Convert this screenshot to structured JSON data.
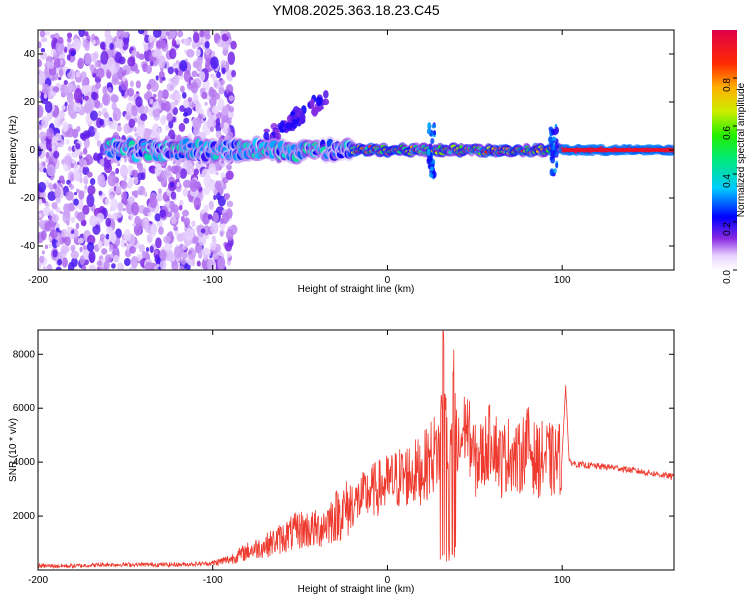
{
  "title": "YM08.2025.363.18.23.C45",
  "colors": {
    "snr_line": "#ee3a2e",
    "frame": "#000000",
    "spectrogram_low": "#8a2be2",
    "spectrogram_high": "#e0113a"
  },
  "chart_data": [
    {
      "type": "heatmap",
      "name": "spectrogram",
      "xlabel": "Height of straight line (km)",
      "ylabel": "Frequency (Hz)",
      "xlim": [
        -200,
        164
      ],
      "ylim": [
        -50,
        50
      ],
      "x_ticks": [
        -200,
        -100,
        0,
        100
      ],
      "x_tick_labels": [
        "-200",
        "-100",
        "0",
        "100"
      ],
      "y_ticks": [
        -40,
        -20,
        0,
        20,
        40
      ],
      "y_tick_labels": [
        "-40",
        "-20",
        "0",
        "20",
        "40"
      ],
      "colorbar": {
        "label": "Normalized spectral amplitude",
        "range": [
          0,
          1
        ],
        "ticks": [
          0,
          0.2,
          0.4,
          0.6,
          0.8
        ],
        "tick_labels": [
          "0.0",
          "0.2",
          "0.4",
          "0.6",
          "0.8"
        ]
      },
      "features": {
        "noise_region_x": [
          -200,
          -88
        ],
        "signal_band_frequency_hz": 0,
        "strong_signal_x": [
          -20,
          164
        ],
        "upward_branch": {
          "x": [
            -70,
            -35
          ],
          "frequency_hz": [
            5,
            22
          ]
        }
      }
    },
    {
      "type": "line",
      "name": "snr",
      "xlabel": "Height of straight line (km)",
      "ylabel": "SNR (10 * v/v)",
      "xlim": [
        -200,
        164
      ],
      "ylim": [
        0,
        8900
      ],
      "x_ticks": [
        -200,
        -100,
        0,
        100
      ],
      "x_tick_labels": [
        "-200",
        "-100",
        "0",
        "100"
      ],
      "y_ticks": [
        2000,
        4000,
        6000,
        8000
      ],
      "y_tick_labels": [
        "2000",
        "4000",
        "6000",
        "8000"
      ],
      "series": [
        {
          "x": [
            -200,
            -180,
            -160,
            -140,
            -120,
            -100,
            -90,
            -80,
            -70,
            -60,
            -50,
            -40,
            -30,
            -20,
            -10,
            0,
            10,
            20,
            25,
            30,
            32,
            35,
            38,
            40,
            45,
            50,
            55,
            60,
            65,
            70,
            75,
            80,
            85,
            90,
            95,
            100,
            102,
            104,
            110,
            120,
            130,
            140,
            150,
            164
          ],
          "values": [
            150,
            150,
            200,
            200,
            200,
            250,
            400,
            700,
            900,
            1200,
            1500,
            1500,
            2000,
            2400,
            2900,
            3200,
            3500,
            3700,
            4200,
            4500,
            8800,
            2000,
            8300,
            4200,
            5500,
            4000,
            4300,
            5000,
            4000,
            4400,
            4000,
            4800,
            4000,
            4200,
            4000,
            4200,
            6900,
            4000,
            3900,
            3850,
            3800,
            3700,
            3600,
            3450
          ]
        }
      ]
    }
  ]
}
